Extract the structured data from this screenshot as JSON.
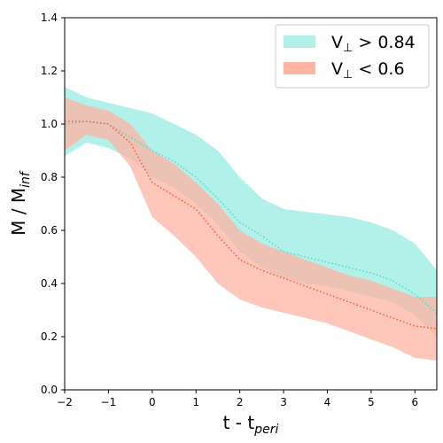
{
  "chart_data": {
    "type": "area",
    "xlabel": "t - t",
    "xlabel_sub": "peri",
    "ylabel": "M / M",
    "ylabel_sub": "inf",
    "xlim": [
      -2,
      6.5
    ],
    "ylim": [
      0,
      1.4
    ],
    "xticks": [
      -2,
      -1,
      0,
      1,
      2,
      3,
      4,
      5,
      6
    ],
    "yticks": [
      0.0,
      0.2,
      0.4,
      0.6,
      0.8,
      1.0,
      1.2,
      1.4
    ],
    "grid": false,
    "legend_position": "top-right",
    "series": [
      {
        "name": "V",
        "name_sub": "⊥",
        "name_rest": " > 0.84",
        "fill_color": "#b2f0ea",
        "line_color": "#40e0d0",
        "x": [
          -2.0,
          -1.5,
          -1.0,
          -0.5,
          0.0,
          0.5,
          1.0,
          1.5,
          2.0,
          2.5,
          3.0,
          3.5,
          4.0,
          4.5,
          5.0,
          5.5,
          6.0,
          6.5
        ],
        "median": [
          1.0,
          1.01,
          1.0,
          0.95,
          0.9,
          0.86,
          0.8,
          0.72,
          0.63,
          0.58,
          0.52,
          0.5,
          0.48,
          0.46,
          0.44,
          0.41,
          0.36,
          0.29
        ],
        "upper": [
          1.14,
          1.1,
          1.08,
          1.06,
          1.04,
          1.0,
          0.96,
          0.9,
          0.8,
          0.72,
          0.68,
          0.67,
          0.66,
          0.65,
          0.63,
          0.6,
          0.55,
          0.45
        ],
        "lower": [
          0.88,
          0.93,
          0.91,
          0.87,
          0.8,
          0.76,
          0.7,
          0.62,
          0.52,
          0.46,
          0.42,
          0.4,
          0.39,
          0.37,
          0.35,
          0.33,
          0.28,
          0.2
        ]
      },
      {
        "name": "V",
        "name_sub": "⊥",
        "name_rest": " < 0.6",
        "fill_color": "#ffb3a3",
        "line_color": "#ff5a36",
        "x": [
          -2.0,
          -1.5,
          -1.0,
          -0.5,
          0.0,
          0.5,
          1.0,
          1.5,
          2.0,
          2.5,
          3.0,
          3.5,
          4.0,
          4.5,
          5.0,
          5.5,
          6.0,
          6.5
        ],
        "median": [
          1.01,
          1.01,
          1.0,
          0.93,
          0.78,
          0.73,
          0.68,
          0.58,
          0.49,
          0.45,
          0.42,
          0.39,
          0.36,
          0.33,
          0.3,
          0.27,
          0.24,
          0.23
        ],
        "upper": [
          1.1,
          1.07,
          1.05,
          1.0,
          0.9,
          0.85,
          0.78,
          0.7,
          0.6,
          0.55,
          0.52,
          0.49,
          0.46,
          0.43,
          0.41,
          0.38,
          0.35,
          0.35
        ],
        "lower": [
          0.9,
          0.96,
          0.94,
          0.84,
          0.65,
          0.58,
          0.5,
          0.4,
          0.34,
          0.31,
          0.29,
          0.27,
          0.25,
          0.22,
          0.19,
          0.16,
          0.12,
          0.11
        ]
      }
    ]
  }
}
